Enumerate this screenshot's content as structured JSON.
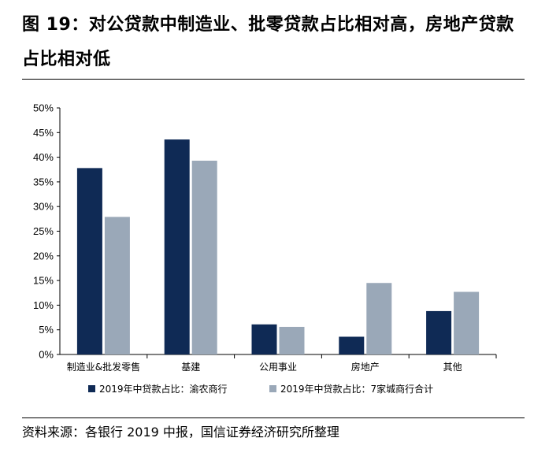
{
  "figure": {
    "title": "图 19：对公贷款中制造业、批零贷款占比相对高，房地产贷款占比相对低",
    "source": "资料来源：各银行 2019 中报，国信证券经济研究所整理"
  },
  "chart_data": {
    "type": "bar",
    "categories": [
      "制造业&批发零售",
      "基建",
      "公用事业",
      "房地产",
      "其他"
    ],
    "series": [
      {
        "name": "2019年中贷款占比：渝农商行",
        "values": [
          37.8,
          43.6,
          6.1,
          3.6,
          8.8
        ],
        "color": "#0f2a55"
      },
      {
        "name": "2019年中贷款占比：7家城商行合计",
        "values": [
          27.9,
          39.3,
          5.6,
          14.5,
          12.7
        ],
        "color": "#9aa8b8"
      }
    ],
    "y_ticks": [
      "0%",
      "5%",
      "10%",
      "15%",
      "20%",
      "25%",
      "30%",
      "35%",
      "40%",
      "45%",
      "50%"
    ],
    "ylim": [
      0,
      50
    ],
    "grid": false,
    "legend_position": "bottom"
  }
}
